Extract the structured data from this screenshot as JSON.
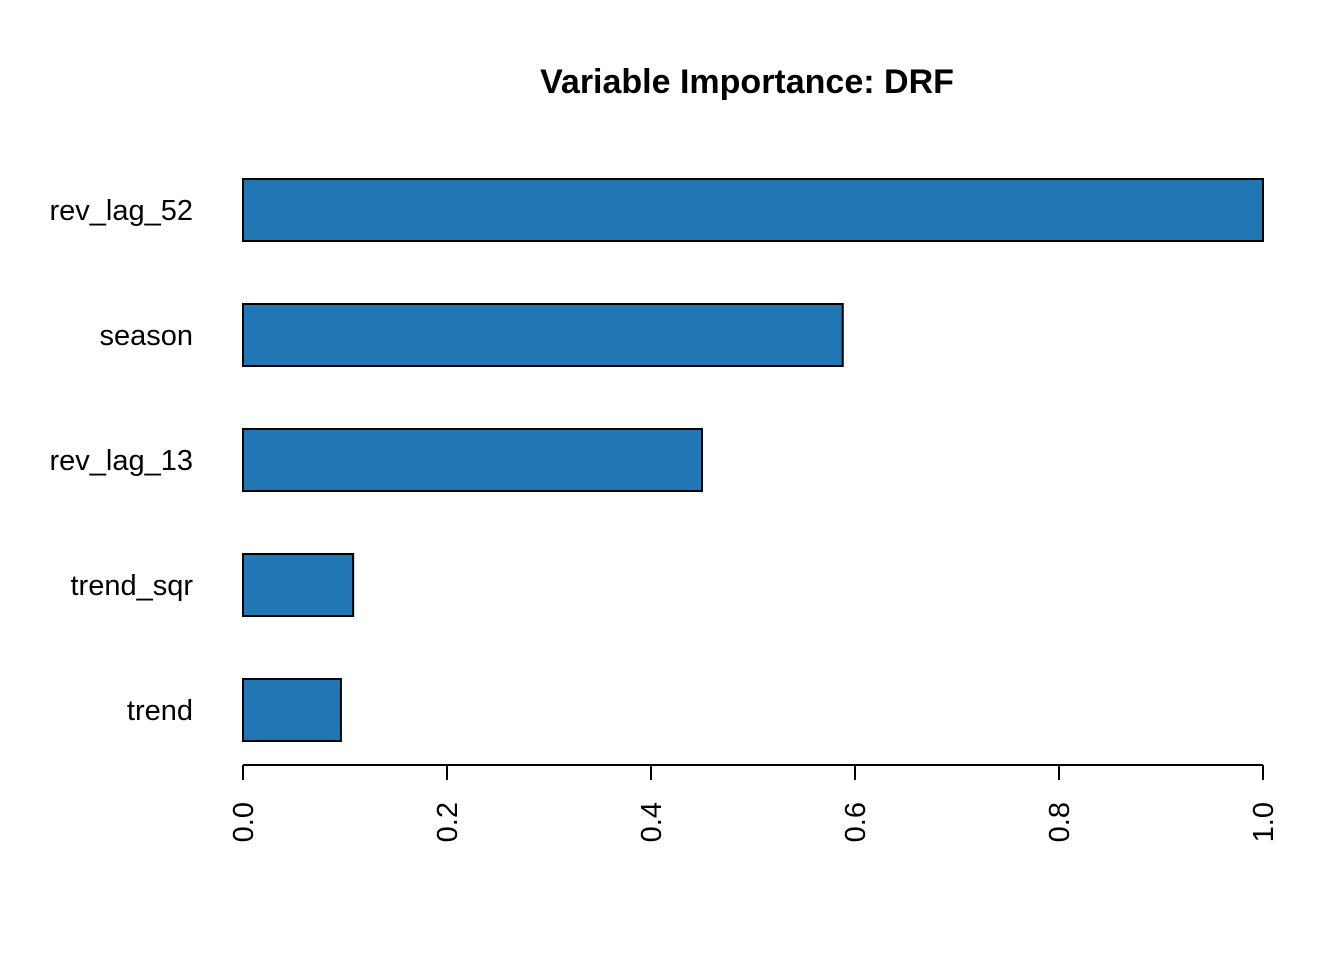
{
  "chart_data": {
    "type": "bar",
    "orientation": "horizontal",
    "title": "Variable Importance: DRF",
    "xlabel": "",
    "ylabel": "",
    "categories": [
      "rev_lag_52",
      "season",
      "rev_lag_13",
      "trend_sqr",
      "trend"
    ],
    "values": [
      1.0,
      0.588,
      0.45,
      0.108,
      0.096
    ],
    "xlim": [
      0,
      1
    ],
    "xticks": [
      "0.0",
      "0.2",
      "0.4",
      "0.6",
      "0.8",
      "1.0"
    ],
    "bar_color": "#2077b4",
    "grid": false,
    "legend": "none"
  }
}
